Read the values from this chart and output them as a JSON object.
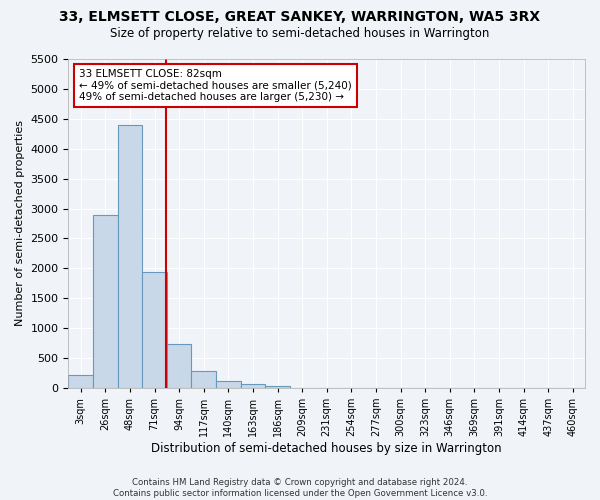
{
  "title": "33, ELMSETT CLOSE, GREAT SANKEY, WARRINGTON, WA5 3RX",
  "subtitle": "Size of property relative to semi-detached houses in Warrington",
  "xlabel": "Distribution of semi-detached houses by size in Warrington",
  "ylabel": "Number of semi-detached properties",
  "bar_color": "#c8d8e8",
  "bar_edge_color": "#6699bb",
  "bin_labels": [
    "3sqm",
    "26sqm",
    "48sqm",
    "71sqm",
    "94sqm",
    "117sqm",
    "140sqm",
    "163sqm",
    "186sqm",
    "209sqm",
    "231sqm",
    "254sqm",
    "277sqm",
    "300sqm",
    "323sqm",
    "346sqm",
    "369sqm",
    "391sqm",
    "414sqm",
    "437sqm",
    "460sqm"
  ],
  "bar_values": [
    220,
    2890,
    4390,
    1940,
    730,
    285,
    115,
    65,
    30,
    0,
    0,
    0,
    0,
    0,
    0,
    0,
    0,
    0,
    0,
    0,
    0
  ],
  "ylim": [
    0,
    5500
  ],
  "yticks": [
    0,
    500,
    1000,
    1500,
    2000,
    2500,
    3000,
    3500,
    4000,
    4500,
    5000,
    5500
  ],
  "property_size": 82,
  "vline_x": 3.478,
  "annotation_text": "33 ELMSETT CLOSE: 82sqm\n← 49% of semi-detached houses are smaller (5,240)\n49% of semi-detached houses are larger (5,230) →",
  "vline_color": "#cc0000",
  "annotation_box_color": "#ffffff",
  "annotation_box_edge_color": "#cc0000",
  "footer_text": "Contains HM Land Registry data © Crown copyright and database right 2024.\nContains public sector information licensed under the Open Government Licence v3.0.",
  "background_color": "#f0f4f8",
  "grid_color": "#ffffff"
}
